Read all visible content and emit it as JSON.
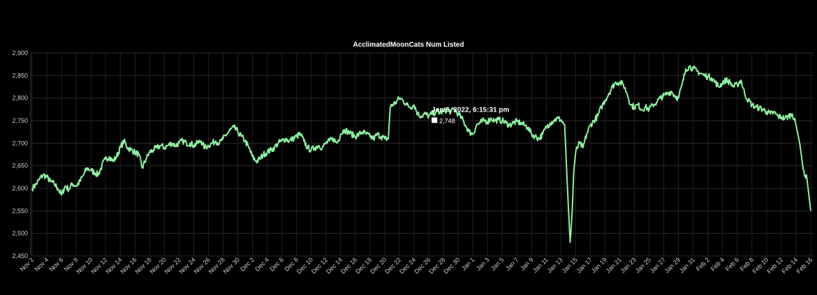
{
  "chart_data": {
    "type": "line",
    "title": "AcclimatedMoonCats Num Listed",
    "xlabel": "",
    "ylabel": "",
    "ylim": [
      2450,
      2900
    ],
    "yticks": [
      2450,
      2500,
      2550,
      2600,
      2650,
      2700,
      2750,
      2800,
      2850,
      2900
    ],
    "ytick_labels": [
      "2,450",
      "2,500",
      "2,550",
      "2,600",
      "2,650",
      "2,700",
      "2,750",
      "2,800",
      "2,850",
      "2,900"
    ],
    "x_start": "2021-11-02",
    "x_end": "2022-02-16",
    "grid": true,
    "line_color": "#8ef0a0",
    "background": "#000000",
    "xtick_labels": [
      "Nov 2",
      "Nov 4",
      "Nov 6",
      "Nov 8",
      "Nov 10",
      "Nov 12",
      "Nov 14",
      "Nov 16",
      "Nov 18",
      "Nov 20",
      "Nov 22",
      "Nov 24",
      "Nov 26",
      "Nov 28",
      "Nov 30",
      "Dec 2",
      "Dec 4",
      "Dec 6",
      "Dec 8",
      "Dec 10",
      "Dec 12",
      "Dec 14",
      "Dec 16",
      "Dec 18",
      "Dec 20",
      "Dec 22",
      "Dec 24",
      "Dec 26",
      "Dec 28",
      "Dec 30",
      "Jan 1",
      "Jan 3",
      "Jan 5",
      "Jan 7",
      "Jan 9",
      "Jan 11",
      "Jan 13",
      "Jan 15",
      "Jan 17",
      "Jan 19",
      "Jan 21",
      "Jan 23",
      "Jan 25",
      "Jan 27",
      "Jan 29",
      "Jan 31",
      "Feb 2",
      "Feb 4",
      "Feb 6",
      "Feb 8",
      "Feb 10",
      "Feb 12",
      "Feb 14",
      "Feb 16"
    ],
    "series": [
      {
        "points": [
          [
            "2021-11-02",
            2600
          ],
          [
            "2021-11-02T12:00",
            2608
          ],
          [
            "2021-11-03",
            2620
          ],
          [
            "2021-11-03T12:00",
            2630
          ],
          [
            "2021-11-04",
            2625
          ],
          [
            "2021-11-04T12:00",
            2615
          ],
          [
            "2021-11-05",
            2610
          ],
          [
            "2021-11-05T12:00",
            2600
          ],
          [
            "2021-11-06",
            2585
          ],
          [
            "2021-11-06T12:00",
            2605
          ],
          [
            "2021-11-07",
            2598
          ],
          [
            "2021-11-07T12:00",
            2610
          ],
          [
            "2021-11-08",
            2605
          ],
          [
            "2021-11-08T12:00",
            2615
          ],
          [
            "2021-11-09",
            2630
          ],
          [
            "2021-11-09T12:00",
            2645
          ],
          [
            "2021-11-10",
            2640
          ],
          [
            "2021-11-10T12:00",
            2635
          ],
          [
            "2021-11-11",
            2630
          ],
          [
            "2021-11-11T12:00",
            2650
          ],
          [
            "2021-11-12",
            2665
          ],
          [
            "2021-11-12T12:00",
            2670
          ],
          [
            "2021-11-13",
            2660
          ],
          [
            "2021-11-13T12:00",
            2670
          ],
          [
            "2021-11-14",
            2690
          ],
          [
            "2021-11-14T12:00",
            2705
          ],
          [
            "2021-11-15",
            2690
          ],
          [
            "2021-11-15T12:00",
            2685
          ],
          [
            "2021-11-16",
            2680
          ],
          [
            "2021-11-16T12:00",
            2675
          ],
          [
            "2021-11-17",
            2645
          ],
          [
            "2021-11-17T12:00",
            2665
          ],
          [
            "2021-11-18",
            2680
          ],
          [
            "2021-11-18T12:00",
            2685
          ],
          [
            "2021-11-19",
            2690
          ],
          [
            "2021-11-19T12:00",
            2695
          ],
          [
            "2021-11-20",
            2690
          ],
          [
            "2021-11-20T12:00",
            2695
          ],
          [
            "2021-11-21",
            2700
          ],
          [
            "2021-11-21T12:00",
            2695
          ],
          [
            "2021-11-22",
            2700
          ],
          [
            "2021-11-22T12:00",
            2705
          ],
          [
            "2021-11-23",
            2700
          ],
          [
            "2021-11-23T12:00",
            2700
          ],
          [
            "2021-11-24",
            2695
          ],
          [
            "2021-11-24T12:00",
            2700
          ],
          [
            "2021-11-25",
            2705
          ],
          [
            "2021-11-25T12:00",
            2690
          ],
          [
            "2021-11-26",
            2695
          ],
          [
            "2021-11-26T12:00",
            2700
          ],
          [
            "2021-11-27",
            2705
          ],
          [
            "2021-11-27T12:00",
            2700
          ],
          [
            "2021-11-28",
            2710
          ],
          [
            "2021-11-28T12:00",
            2720
          ],
          [
            "2021-11-29",
            2730
          ],
          [
            "2021-11-29T12:00",
            2735
          ],
          [
            "2021-11-30",
            2725
          ],
          [
            "2021-11-30T12:00",
            2715
          ],
          [
            "2021-12-01",
            2705
          ],
          [
            "2021-12-01T12:00",
            2690
          ],
          [
            "2021-12-02",
            2670
          ],
          [
            "2021-12-02T12:00",
            2660
          ],
          [
            "2021-12-03",
            2665
          ],
          [
            "2021-12-03T12:00",
            2675
          ],
          [
            "2021-12-04",
            2680
          ],
          [
            "2021-12-04T12:00",
            2685
          ],
          [
            "2021-12-05",
            2690
          ],
          [
            "2021-12-05T12:00",
            2700
          ],
          [
            "2021-12-06",
            2705
          ],
          [
            "2021-12-06T12:00",
            2710
          ],
          [
            "2021-12-07",
            2705
          ],
          [
            "2021-12-07T12:00",
            2710
          ],
          [
            "2021-12-08",
            2715
          ],
          [
            "2021-12-08T12:00",
            2720
          ],
          [
            "2021-12-09",
            2705
          ],
          [
            "2021-12-09T12:00",
            2690
          ],
          [
            "2021-12-10",
            2685
          ],
          [
            "2021-12-10T12:00",
            2690
          ],
          [
            "2021-12-11",
            2695
          ],
          [
            "2021-12-11T12:00",
            2690
          ],
          [
            "2021-12-12",
            2700
          ],
          [
            "2021-12-12T12:00",
            2705
          ],
          [
            "2021-12-13",
            2710
          ],
          [
            "2021-12-13T12:00",
            2700
          ],
          [
            "2021-12-14",
            2720
          ],
          [
            "2021-12-14T12:00",
            2730
          ],
          [
            "2021-12-15",
            2725
          ],
          [
            "2021-12-15T12:00",
            2720
          ],
          [
            "2021-12-16",
            2715
          ],
          [
            "2021-12-16T12:00",
            2720
          ],
          [
            "2021-12-17",
            2725
          ],
          [
            "2021-12-17T12:00",
            2720
          ],
          [
            "2021-12-18",
            2715
          ],
          [
            "2021-12-18T12:00",
            2710
          ],
          [
            "2021-12-19",
            2720
          ],
          [
            "2021-12-19T12:00",
            2715
          ],
          [
            "2021-12-20",
            2710
          ],
          [
            "2021-12-20T12:00",
            2710
          ],
          [
            "2021-12-20T18:00",
            2780
          ],
          [
            "2021-12-21",
            2785
          ],
          [
            "2021-12-21T12:00",
            2790
          ],
          [
            "2021-12-22",
            2800
          ],
          [
            "2021-12-22T12:00",
            2795
          ],
          [
            "2021-12-23",
            2785
          ],
          [
            "2021-12-23T12:00",
            2780
          ],
          [
            "2021-12-24",
            2785
          ],
          [
            "2021-12-24T12:00",
            2765
          ],
          [
            "2021-12-25",
            2760
          ],
          [
            "2021-12-25T12:00",
            2765
          ],
          [
            "2021-12-26",
            2760
          ],
          [
            "2021-12-26T12:00",
            2765
          ],
          [
            "2021-12-27",
            2770
          ],
          [
            "2021-12-27T12:00",
            2768
          ],
          [
            "2021-12-28",
            2770
          ],
          [
            "2021-12-28T12:00",
            2775
          ],
          [
            "2021-12-29",
            2770
          ],
          [
            "2021-12-29T12:00",
            2775
          ],
          [
            "2021-12-30",
            2765
          ],
          [
            "2021-12-30T12:00",
            2755
          ],
          [
            "2021-12-31",
            2740
          ],
          [
            "2021-12-31T12:00",
            2725
          ],
          [
            "2022-01-01",
            2720
          ],
          [
            "2022-01-01T12:00",
            2740
          ],
          [
            "2022-01-02",
            2745
          ],
          [
            "2022-01-02T12:00",
            2750
          ],
          [
            "2022-01-03",
            2748
          ],
          [
            "2022-01-03T12:00",
            2755
          ],
          [
            "2022-01-04",
            2750
          ],
          [
            "2022-01-04T12:00",
            2752
          ],
          [
            "2022-01-05",
            2750
          ],
          [
            "2022-01-05T12:00",
            2745
          ],
          [
            "2022-01-06",
            2740
          ],
          [
            "2022-01-06T12:00",
            2745
          ],
          [
            "2022-01-07",
            2748
          ],
          [
            "2022-01-07T12:00",
            2745
          ],
          [
            "2022-01-08",
            2740
          ],
          [
            "2022-01-08T12:00",
            2735
          ],
          [
            "2022-01-09",
            2720
          ],
          [
            "2022-01-09T12:00",
            2715
          ],
          [
            "2022-01-10",
            2710
          ],
          [
            "2022-01-10T12:00",
            2720
          ],
          [
            "2022-01-11",
            2735
          ],
          [
            "2022-01-11T12:00",
            2745
          ],
          [
            "2022-01-12",
            2750
          ],
          [
            "2022-01-12T12:00",
            2755
          ],
          [
            "2022-01-13",
            2752
          ],
          [
            "2022-01-13T12:00",
            2740
          ],
          [
            "2022-01-14",
            2560
          ],
          [
            "2022-01-14T06:00",
            2480
          ],
          [
            "2022-01-14T12:00",
            2540
          ],
          [
            "2022-01-14T18:00",
            2640
          ],
          [
            "2022-01-15",
            2680
          ],
          [
            "2022-01-15T12:00",
            2700
          ],
          [
            "2022-01-16",
            2690
          ],
          [
            "2022-01-16T12:00",
            2720
          ],
          [
            "2022-01-17",
            2740
          ],
          [
            "2022-01-17T12:00",
            2750
          ],
          [
            "2022-01-18",
            2760
          ],
          [
            "2022-01-18T12:00",
            2780
          ],
          [
            "2022-01-19",
            2795
          ],
          [
            "2022-01-19T12:00",
            2810
          ],
          [
            "2022-01-20",
            2825
          ],
          [
            "2022-01-20T12:00",
            2835
          ],
          [
            "2022-01-21",
            2835
          ],
          [
            "2022-01-21T12:00",
            2830
          ],
          [
            "2022-01-22",
            2810
          ],
          [
            "2022-01-22T12:00",
            2785
          ],
          [
            "2022-01-23",
            2780
          ],
          [
            "2022-01-23T12:00",
            2785
          ],
          [
            "2022-01-24",
            2775
          ],
          [
            "2022-01-24T12:00",
            2780
          ],
          [
            "2022-01-25",
            2775
          ],
          [
            "2022-01-25T12:00",
            2785
          ],
          [
            "2022-01-26",
            2790
          ],
          [
            "2022-01-26T12:00",
            2800
          ],
          [
            "2022-01-27",
            2805
          ],
          [
            "2022-01-27T12:00",
            2810
          ],
          [
            "2022-01-28",
            2815
          ],
          [
            "2022-01-28T12:00",
            2805
          ],
          [
            "2022-01-29",
            2800
          ],
          [
            "2022-01-29T12:00",
            2830
          ],
          [
            "2022-01-30",
            2865
          ],
          [
            "2022-01-30T12:00",
            2870
          ],
          [
            "2022-01-31",
            2865
          ],
          [
            "2022-01-31T12:00",
            2860
          ],
          [
            "2022-02-01",
            2855
          ],
          [
            "2022-02-01T12:00",
            2850
          ],
          [
            "2022-02-02",
            2848
          ],
          [
            "2022-02-02T12:00",
            2845
          ],
          [
            "2022-02-03",
            2835
          ],
          [
            "2022-02-03T12:00",
            2825
          ],
          [
            "2022-02-04",
            2835
          ],
          [
            "2022-02-04T12:00",
            2840
          ],
          [
            "2022-02-05",
            2835
          ],
          [
            "2022-02-05T12:00",
            2825
          ],
          [
            "2022-02-06",
            2830
          ],
          [
            "2022-02-06T12:00",
            2840
          ],
          [
            "2022-02-07",
            2810
          ],
          [
            "2022-02-07T12:00",
            2795
          ],
          [
            "2022-02-08",
            2785
          ],
          [
            "2022-02-08T12:00",
            2780
          ],
          [
            "2022-02-09",
            2778
          ],
          [
            "2022-02-09T12:00",
            2775
          ],
          [
            "2022-02-10",
            2770
          ],
          [
            "2022-02-10T12:00",
            2765
          ],
          [
            "2022-02-11",
            2768
          ],
          [
            "2022-02-11T12:00",
            2760
          ],
          [
            "2022-02-12",
            2758
          ],
          [
            "2022-02-12T12:00",
            2755
          ],
          [
            "2022-02-13",
            2760
          ],
          [
            "2022-02-13T12:00",
            2765
          ],
          [
            "2022-02-14",
            2740
          ],
          [
            "2022-02-14T12:00",
            2700
          ],
          [
            "2022-02-15",
            2640
          ],
          [
            "2022-02-15T12:00",
            2620
          ],
          [
            "2022-02-16",
            2550
          ]
        ]
      }
    ],
    "tooltip": {
      "x": "2022-01-03T18:15:31",
      "title": "Jan 3, 2022, 6:15:31 pm",
      "value": 2748,
      "value_label": "2,748",
      "swatch_color": "#ffffff"
    }
  }
}
